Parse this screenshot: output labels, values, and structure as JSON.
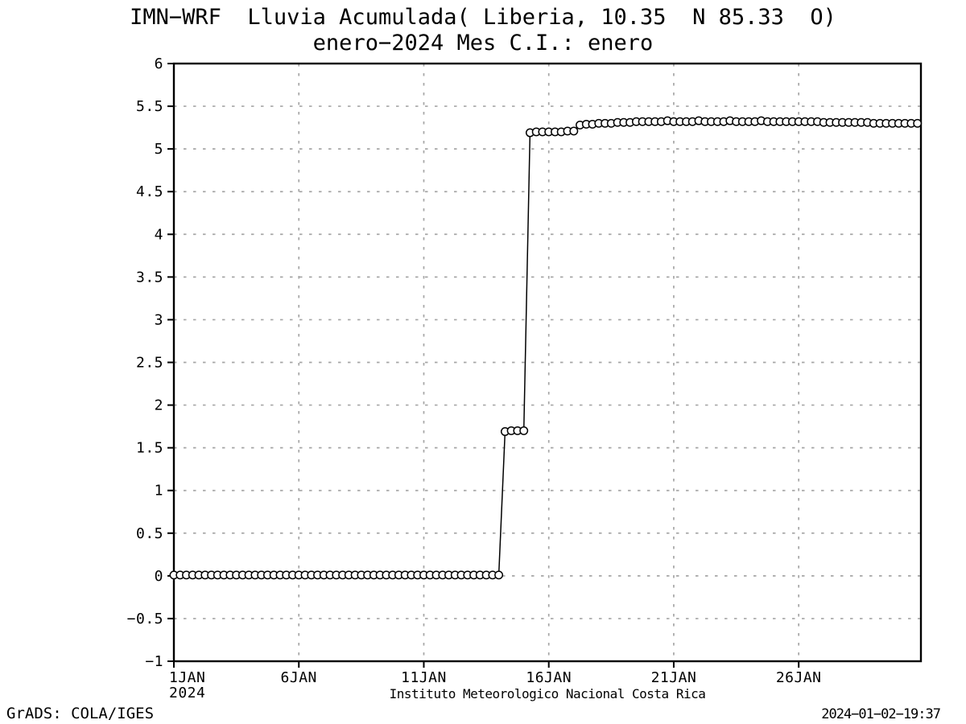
{
  "footer": {
    "grads_credit": "GrADS: COLA/IGES",
    "timestamp": "2024−01−02−19:37"
  },
  "chart_data": {
    "type": "line",
    "title": "IMN−WRF  Lluvia Acumulada( Liberia, 10.35  N 85.33  O)",
    "subtitle": "enero−2024 Mes C.I.: enero",
    "caption": "Instituto Meteorologico Nacional Costa Rica",
    "marker": "open-circle",
    "line_color": "#000000",
    "grid_color": "#a6a6a6",
    "grid": true,
    "ylim": [
      -1,
      6
    ],
    "xlim_days": [
      1,
      30.89
    ],
    "ytick_values": [
      -1,
      -0.5,
      0,
      0.5,
      1,
      1.5,
      2,
      2.5,
      3,
      3.5,
      4,
      4.5,
      5,
      5.5,
      6
    ],
    "ytick_labels": [
      "−1",
      "−0.5",
      "0",
      "0.5",
      "1",
      "1.5",
      "2",
      "2.5",
      "3",
      "3.5",
      "4",
      "4.5",
      "5",
      "5.5",
      "6"
    ],
    "xtick_values": [
      1,
      6,
      11,
      16,
      21,
      26
    ],
    "xtick_labels": [
      "1JAN",
      "6JAN",
      "11JAN",
      "16JAN",
      "21JAN",
      "26JAN"
    ],
    "x_year_label": "2024",
    "series": [
      {
        "start_day": 1.0,
        "step_days": 0.25,
        "values": [
          0.01,
          0.01,
          0.01,
          0.01,
          0.01,
          0.01,
          0.01,
          0.01,
          0.01,
          0.01,
          0.01,
          0.01,
          0.01,
          0.01,
          0.01,
          0.01,
          0.01,
          0.01,
          0.01,
          0.01,
          0.01,
          0.01,
          0.01,
          0.01,
          0.01,
          0.01,
          0.01,
          0.01,
          0.01,
          0.01,
          0.01,
          0.01,
          0.01,
          0.01,
          0.01,
          0.01,
          0.01,
          0.01,
          0.01,
          0.01,
          0.01,
          0.01,
          0.01,
          0.01,
          0.01,
          0.01,
          0.01,
          0.01,
          0.01,
          0.01,
          0.01,
          0.01,
          0.01,
          1.69,
          1.7,
          1.7,
          1.7,
          5.19,
          5.2,
          5.2,
          5.2,
          5.2,
          5.2,
          5.21,
          5.21,
          5.28,
          5.29,
          5.29,
          5.3,
          5.3,
          5.3,
          5.31,
          5.31,
          5.31,
          5.32,
          5.32,
          5.32,
          5.32,
          5.32,
          5.33,
          5.32,
          5.32,
          5.32,
          5.32,
          5.33,
          5.32,
          5.32,
          5.32,
          5.32,
          5.33,
          5.32,
          5.32,
          5.32,
          5.32,
          5.33,
          5.32,
          5.32,
          5.32,
          5.32,
          5.32,
          5.32,
          5.32,
          5.32,
          5.32,
          5.31,
          5.31,
          5.31,
          5.31,
          5.31,
          5.31,
          5.31,
          5.31,
          5.3,
          5.3,
          5.3,
          5.3,
          5.3,
          5.3,
          5.3,
          5.3
        ]
      }
    ]
  }
}
